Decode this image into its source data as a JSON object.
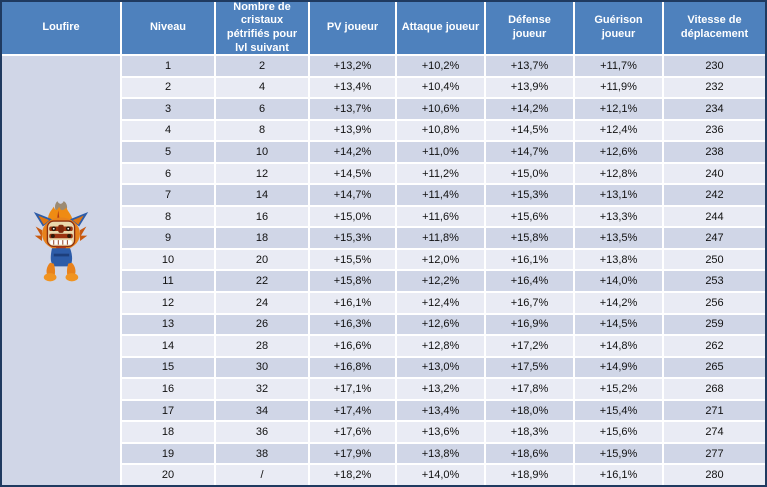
{
  "table": {
    "creature_name": "Loufire",
    "columns": [
      "Niveau",
      "Nombre de cristaux pétrifiés pour lvl suivant",
      "PV joueur",
      "Attaque joueur",
      "Défense joueur",
      "Guérison joueur",
      "Vitesse de déplacement"
    ],
    "column_keys": [
      "niveau",
      "cristaux-petrifies",
      "pv-joueur",
      "attaque-joueur",
      "defense-joueur",
      "guerison-joueur",
      "vitesse-deplacement"
    ],
    "rows": [
      [
        "1",
        "2",
        "+13,2%",
        "+10,2%",
        "+13,7%",
        "+11,7%",
        "230"
      ],
      [
        "2",
        "4",
        "+13,4%",
        "+10,4%",
        "+13,9%",
        "+11,9%",
        "232"
      ],
      [
        "3",
        "6",
        "+13,7%",
        "+10,6%",
        "+14,2%",
        "+12,1%",
        "234"
      ],
      [
        "4",
        "8",
        "+13,9%",
        "+10,8%",
        "+14,5%",
        "+12,4%",
        "236"
      ],
      [
        "5",
        "10",
        "+14,2%",
        "+11,0%",
        "+14,7%",
        "+12,6%",
        "238"
      ],
      [
        "6",
        "12",
        "+14,5%",
        "+11,2%",
        "+15,0%",
        "+12,8%",
        "240"
      ],
      [
        "7",
        "14",
        "+14,7%",
        "+11,4%",
        "+15,3%",
        "+13,1%",
        "242"
      ],
      [
        "8",
        "16",
        "+15,0%",
        "+11,6%",
        "+15,6%",
        "+13,3%",
        "244"
      ],
      [
        "9",
        "18",
        "+15,3%",
        "+11,8%",
        "+15,8%",
        "+13,5%",
        "247"
      ],
      [
        "10",
        "20",
        "+15,5%",
        "+12,0%",
        "+16,1%",
        "+13,8%",
        "250"
      ],
      [
        "11",
        "22",
        "+15,8%",
        "+12,2%",
        "+16,4%",
        "+14,0%",
        "253"
      ],
      [
        "12",
        "24",
        "+16,1%",
        "+12,4%",
        "+16,7%",
        "+14,2%",
        "256"
      ],
      [
        "13",
        "26",
        "+16,3%",
        "+12,6%",
        "+16,9%",
        "+14,5%",
        "259"
      ],
      [
        "14",
        "28",
        "+16,6%",
        "+12,8%",
        "+17,2%",
        "+14,8%",
        "262"
      ],
      [
        "15",
        "30",
        "+16,8%",
        "+13,0%",
        "+17,5%",
        "+14,9%",
        "265"
      ],
      [
        "16",
        "32",
        "+17,1%",
        "+13,2%",
        "+17,8%",
        "+15,2%",
        "268"
      ],
      [
        "17",
        "34",
        "+17,4%",
        "+13,4%",
        "+18,0%",
        "+15,4%",
        "271"
      ],
      [
        "18",
        "36",
        "+17,6%",
        "+13,6%",
        "+18,3%",
        "+15,6%",
        "274"
      ],
      [
        "19",
        "38",
        "+17,9%",
        "+13,8%",
        "+18,6%",
        "+15,9%",
        "277"
      ],
      [
        "20",
        "/",
        "+18,2%",
        "+14,0%",
        "+18,9%",
        "+16,1%",
        "280"
      ]
    ]
  },
  "colors": {
    "header_bg": "#4E81BD",
    "header_text": "#FFFFFF",
    "row_odd": "#D0D6E7",
    "row_even": "#E9EBF4",
    "grid_line": "#FFFFFF",
    "outer_border": "#1F3A60",
    "cell_text": "#111111"
  }
}
